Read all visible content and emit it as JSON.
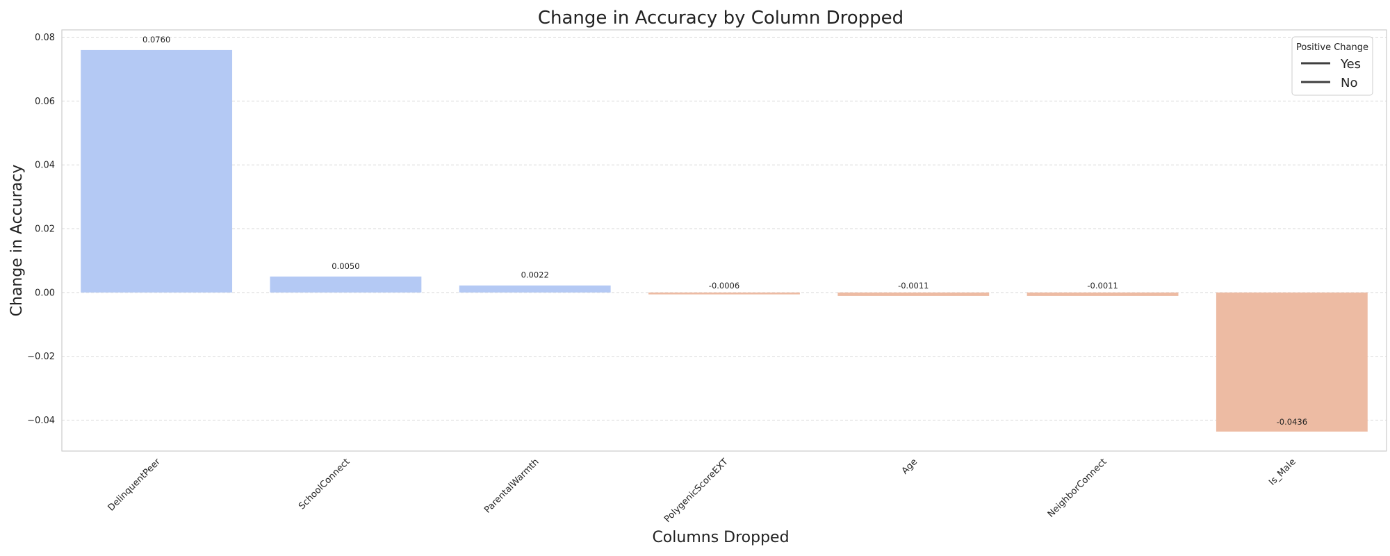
{
  "chart_data": {
    "type": "bar",
    "title": "Change in Accuracy by Column Dropped",
    "xlabel": "Columns Dropped",
    "ylabel": "Change in Accuracy",
    "categories": [
      "DelinquentPeer",
      "SchoolConnect",
      "ParentalWarmth",
      "PolygenicScoreEXT",
      "Age",
      "NeighborConnect",
      "Is_Male"
    ],
    "values": [
      0.076,
      0.005,
      0.0022,
      -0.0006,
      -0.0011,
      -0.0011,
      -0.0436
    ],
    "value_labels": [
      "0.0760",
      "0.0050",
      "0.0022",
      "-0.0006",
      "-0.0011",
      "-0.0011",
      "-0.0436"
    ],
    "ylim": [
      -0.0497,
      0.0823
    ],
    "yticks": [
      -0.04,
      -0.02,
      0.0,
      0.02,
      0.04,
      0.06,
      0.08
    ],
    "ytick_labels": [
      "−0.04",
      "−0.02",
      "0.00",
      "0.02",
      "0.04",
      "0.06",
      "0.08"
    ],
    "grid": true,
    "legend": {
      "title": "Positive Change",
      "placement": "top-right",
      "entries": [
        {
          "label": "Yes",
          "color": "#3f3f3f"
        },
        {
          "label": "No",
          "color": "#3f3f3f"
        }
      ]
    },
    "colors": {
      "positive": "#b4c9f4",
      "negative": "#edbba3"
    }
  }
}
